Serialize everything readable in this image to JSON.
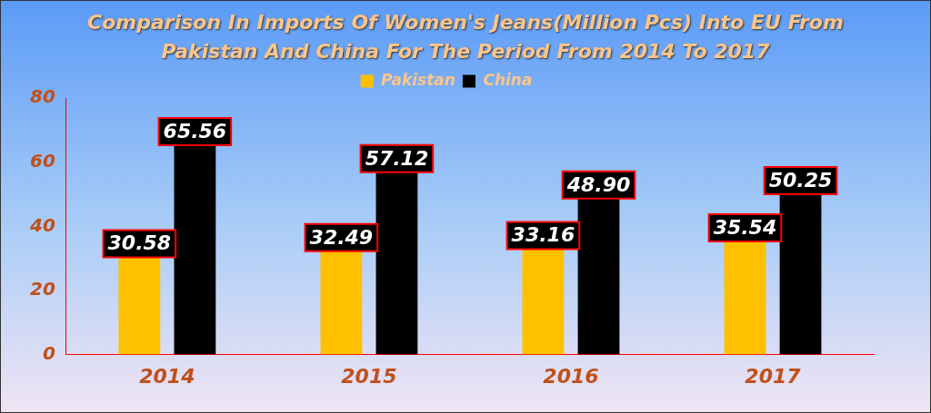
{
  "chart_data": {
    "type": "bar",
    "title": "Comparison In Imports Of Women's Jeans(Million Pcs) Into EU From Pakistan And China For The Period From 2014 To 2017",
    "categories": [
      "2014",
      "2015",
      "2016",
      "2017"
    ],
    "series": [
      {
        "name": "Pakistan",
        "color": "#ffc000",
        "values": [
          30.58,
          32.49,
          33.16,
          35.54
        ]
      },
      {
        "name": "China",
        "color": "#000000",
        "values": [
          65.56,
          57.12,
          48.9,
          50.25
        ]
      }
    ],
    "value_labels": [
      [
        "30.58",
        "32.49",
        "33.16",
        "35.54"
      ],
      [
        "65.56",
        "57.12",
        "48.90",
        "50.25"
      ]
    ],
    "ylim": [
      0,
      80
    ],
    "yticks": [
      0,
      20,
      40,
      60,
      80
    ],
    "grid": false,
    "legend": "top"
  }
}
